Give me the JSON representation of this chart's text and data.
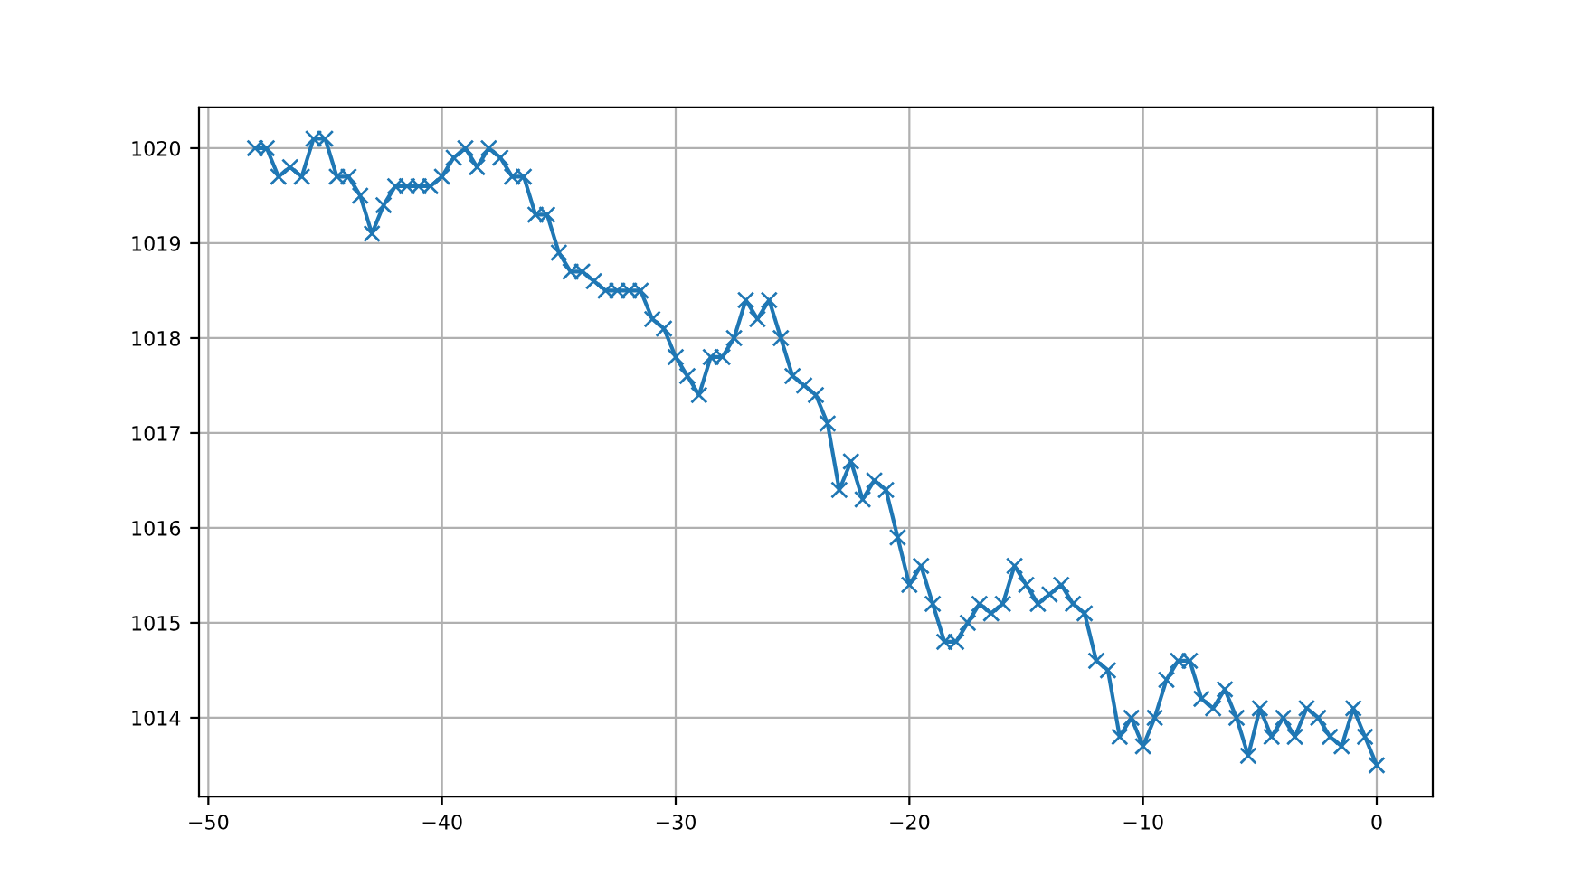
{
  "chart_data": {
    "type": "line",
    "marker": "cross",
    "line_style": "solid",
    "grid": true,
    "x": [
      -48,
      -47.5,
      -47,
      -46.5,
      -46,
      -45.5,
      -45,
      -44.5,
      -44,
      -43.5,
      -43,
      -42.5,
      -42,
      -41.5,
      -41,
      -40.5,
      -40,
      -39.5,
      -39,
      -38.5,
      -38,
      -37.5,
      -37,
      -36.5,
      -36,
      -35.5,
      -35,
      -34.5,
      -34,
      -33.5,
      -33,
      -32.5,
      -32,
      -31.5,
      -31,
      -30.5,
      -30,
      -29.5,
      -29,
      -28.5,
      -28,
      -27.5,
      -27,
      -26.5,
      -26,
      -25.5,
      -25,
      -24.5,
      -24,
      -23.5,
      -23,
      -22.5,
      -22,
      -21.5,
      -21,
      -20.5,
      -20,
      -19.5,
      -19,
      -18.5,
      -18,
      -17.5,
      -17,
      -16.5,
      -16,
      -15.5,
      -15,
      -14.5,
      -14,
      -13.5,
      -13,
      -12.5,
      -12,
      -11.5,
      -11,
      -10.5,
      -10,
      -9.5,
      -9,
      -8.5,
      -8,
      -7.5,
      -7,
      -6.5,
      -6,
      -5.5,
      -5,
      -4.5,
      -4,
      -3.5,
      -3,
      -2.5,
      -2,
      -1.5,
      -1,
      -0.5,
      0
    ],
    "series": [
      {
        "color": "#1f77b4",
        "values": [
          1020.0,
          1020.0,
          1019.7,
          1019.8,
          1019.7,
          1020.1,
          1020.1,
          1019.7,
          1019.7,
          1019.5,
          1019.1,
          1019.4,
          1019.6,
          1019.6,
          1019.6,
          1019.6,
          1019.7,
          1019.9,
          1020.0,
          1019.8,
          1020.0,
          1019.9,
          1019.7,
          1019.7,
          1019.3,
          1019.3,
          1018.9,
          1018.7,
          1018.7,
          1018.6,
          1018.5,
          1018.5,
          1018.5,
          1018.5,
          1018.2,
          1018.1,
          1017.8,
          1017.6,
          1017.4,
          1017.8,
          1017.8,
          1018.0,
          1018.4,
          1018.2,
          1018.4,
          1018.0,
          1017.6,
          1017.5,
          1017.4,
          1017.1,
          1016.4,
          1016.7,
          1016.3,
          1016.5,
          1016.4,
          1015.9,
          1015.4,
          1015.6,
          1015.2,
          1014.8,
          1014.8,
          1015.0,
          1015.2,
          1015.1,
          1015.2,
          1015.6,
          1015.4,
          1015.2,
          1015.3,
          1015.4,
          1015.2,
          1015.1,
          1014.6,
          1014.5,
          1013.8,
          1014.0,
          1013.7,
          1014.0,
          1014.4,
          1014.6,
          1014.6,
          1014.2,
          1014.1,
          1014.3,
          1014.0,
          1013.6,
          1014.1,
          1013.8,
          1014.0,
          1013.8,
          1014.1,
          1014.0,
          1013.8,
          1013.7,
          1014.1,
          1013.8,
          1013.5
        ]
      }
    ],
    "xlim": [
      -50.4,
      2.4
    ],
    "xticks": [
      {
        "value": -50,
        "label": "−50"
      },
      {
        "value": -40,
        "label": "−40"
      },
      {
        "value": -30,
        "label": "−30"
      },
      {
        "value": -20,
        "label": "−20"
      },
      {
        "value": -10,
        "label": "−10"
      },
      0
    ],
    "ylim": [
      1013.17,
      1020.43
    ],
    "yticks": [
      1014,
      1015,
      1016,
      1017,
      1018,
      1019,
      1020
    ]
  }
}
